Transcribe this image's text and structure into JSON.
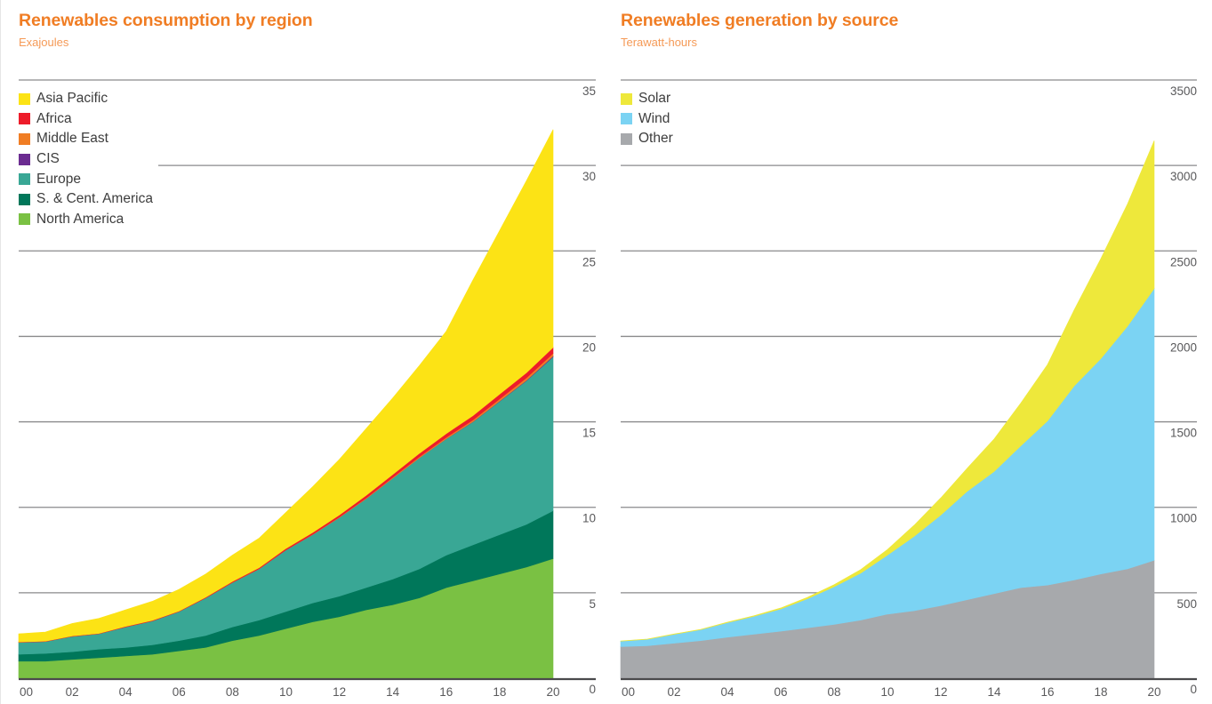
{
  "chart_data": [
    {
      "type": "area",
      "stacked": true,
      "title": "Renewables consumption by region",
      "subtitle": "Exajoules",
      "xlabel": "",
      "ylabel": "Exajoules",
      "x": [
        2000,
        2001,
        2002,
        2003,
        2004,
        2005,
        2006,
        2007,
        2008,
        2009,
        2010,
        2011,
        2012,
        2013,
        2014,
        2015,
        2016,
        2017,
        2018,
        2019,
        2020
      ],
      "x_tick_labels": [
        "00",
        "02",
        "04",
        "06",
        "08",
        "10",
        "12",
        "14",
        "16",
        "18",
        "20"
      ],
      "y_tick_labels": [
        "0",
        "5",
        "10",
        "15",
        "20",
        "25",
        "30",
        "35"
      ],
      "ylim": [
        0,
        35
      ],
      "grid": true,
      "y_axis_position": "right",
      "legend_position": "top-left",
      "series": [
        {
          "name": "North America",
          "color": "#7ac143",
          "values": [
            1.0,
            1.0,
            1.1,
            1.2,
            1.3,
            1.4,
            1.6,
            1.8,
            2.2,
            2.5,
            2.9,
            3.3,
            3.6,
            4.0,
            4.3,
            4.7,
            5.3,
            5.7,
            6.1,
            6.5,
            7.0
          ]
        },
        {
          "name": "S. & Cent. America",
          "color": "#00775a",
          "values": [
            0.4,
            0.45,
            0.45,
            0.5,
            0.5,
            0.55,
            0.6,
            0.7,
            0.8,
            0.9,
            1.0,
            1.1,
            1.2,
            1.3,
            1.5,
            1.7,
            1.9,
            2.1,
            2.3,
            2.5,
            2.8
          ]
        },
        {
          "name": "Europe",
          "color": "#39a795",
          "values": [
            0.7,
            0.7,
            0.9,
            0.9,
            1.2,
            1.4,
            1.7,
            2.2,
            2.6,
            3.0,
            3.6,
            4.0,
            4.6,
            5.2,
            5.9,
            6.5,
            6.8,
            7.2,
            7.8,
            8.4,
            9.0
          ]
        },
        {
          "name": "CIS",
          "color": "#6b2c91",
          "values": [
            0.0,
            0.0,
            0.0,
            0.0,
            0.0,
            0.0,
            0.0,
            0.0,
            0.0,
            0.0,
            0.0,
            0.0,
            0.0,
            0.0,
            0.0,
            0.0,
            0.01,
            0.01,
            0.02,
            0.03,
            0.05
          ]
        },
        {
          "name": "Middle East",
          "color": "#f07d24",
          "values": [
            0.0,
            0.0,
            0.0,
            0.0,
            0.0,
            0.0,
            0.0,
            0.0,
            0.01,
            0.01,
            0.01,
            0.02,
            0.03,
            0.04,
            0.05,
            0.06,
            0.08,
            0.1,
            0.12,
            0.14,
            0.16
          ]
        },
        {
          "name": "Africa",
          "color": "#ed1c2a",
          "values": [
            0.02,
            0.02,
            0.02,
            0.02,
            0.03,
            0.03,
            0.03,
            0.04,
            0.05,
            0.06,
            0.08,
            0.1,
            0.12,
            0.15,
            0.17,
            0.2,
            0.22,
            0.25,
            0.28,
            0.3,
            0.34
          ]
        },
        {
          "name": "Asia Pacific",
          "color": "#fce315",
          "values": [
            0.48,
            0.53,
            0.73,
            0.88,
            0.97,
            1.12,
            1.27,
            1.36,
            1.54,
            1.73,
            2.11,
            2.68,
            3.25,
            3.91,
            4.48,
            5.14,
            5.99,
            7.94,
            9.58,
            11.23,
            12.75
          ]
        }
      ]
    },
    {
      "type": "area",
      "stacked": true,
      "title": "Renewables generation by source",
      "subtitle": "Terawatt-hours",
      "xlabel": "",
      "ylabel": "Terawatt-hours",
      "x": [
        2000,
        2001,
        2002,
        2003,
        2004,
        2005,
        2006,
        2007,
        2008,
        2009,
        2010,
        2011,
        2012,
        2013,
        2014,
        2015,
        2016,
        2017,
        2018,
        2019,
        2020
      ],
      "x_tick_labels": [
        "00",
        "02",
        "04",
        "06",
        "08",
        "10",
        "12",
        "14",
        "16",
        "18",
        "20"
      ],
      "y_tick_labels": [
        "0",
        "500",
        "1000",
        "1500",
        "2000",
        "2500",
        "3000",
        "3500"
      ],
      "ylim": [
        0,
        3500
      ],
      "grid": true,
      "y_axis_position": "right",
      "legend_position": "top-left",
      "series": [
        {
          "name": "Other",
          "color": "#a7a9ac",
          "values": [
            185,
            190,
            205,
            220,
            240,
            258,
            275,
            295,
            315,
            340,
            375,
            395,
            425,
            460,
            495,
            530,
            545,
            575,
            610,
            640,
            690
          ]
        },
        {
          "name": "Wind",
          "color": "#7bd3f3",
          "values": [
            32,
            38,
            52,
            64,
            85,
            104,
            130,
            170,
            220,
            275,
            345,
            435,
            530,
            635,
            715,
            830,
            960,
            1135,
            1260,
            1420,
            1590
          ]
        },
        {
          "name": "Solar",
          "color": "#eee83b",
          "values": [
            1,
            1,
            2,
            2,
            3,
            4,
            6,
            8,
            12,
            21,
            33,
            65,
            100,
            135,
            190,
            250,
            330,
            445,
            585,
            715,
            865
          ]
        }
      ]
    }
  ]
}
